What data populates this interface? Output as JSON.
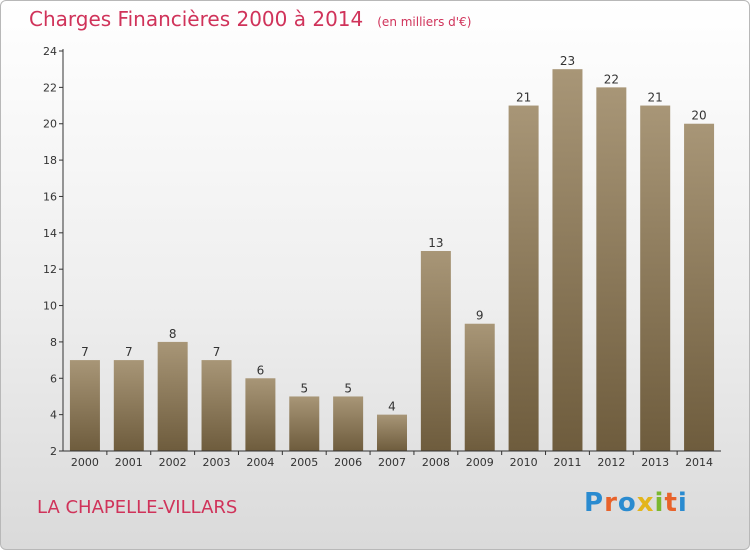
{
  "header": {
    "title": "Charges Financières 2000 à 2014",
    "unit": "(en milliers d'€)"
  },
  "footer": {
    "commune": "LA CHAPELLE-VILLARS",
    "brand": "Proxiti"
  },
  "colors": {
    "title": "#d0335a",
    "bar_top": "#a89677",
    "bar_bottom": "#6e5c3d",
    "axis": "#333333",
    "logo_letters": [
      "#2a8bd0",
      "#e8622a",
      "#2a8bd0",
      "#e3b51c",
      "#7ab830",
      "#e8622a",
      "#2a8bd0"
    ]
  },
  "chart_data": {
    "type": "bar",
    "categories": [
      "2000",
      "2001",
      "2002",
      "2003",
      "2004",
      "2005",
      "2006",
      "2007",
      "2008",
      "2009",
      "2010",
      "2011",
      "2012",
      "2013",
      "2014"
    ],
    "values": [
      7,
      7,
      8,
      7,
      6,
      5,
      5,
      4,
      13,
      9,
      21,
      23,
      22,
      21,
      20
    ],
    "title": "Charges Financières 2000 à 2014",
    "subtitle": "(en milliers d'€)",
    "ylim": [
      2,
      24
    ],
    "yticks": [
      2,
      4,
      6,
      8,
      10,
      12,
      14,
      16,
      18,
      20,
      22,
      24
    ],
    "grid": false,
    "legend": "none",
    "data_labels": true
  }
}
